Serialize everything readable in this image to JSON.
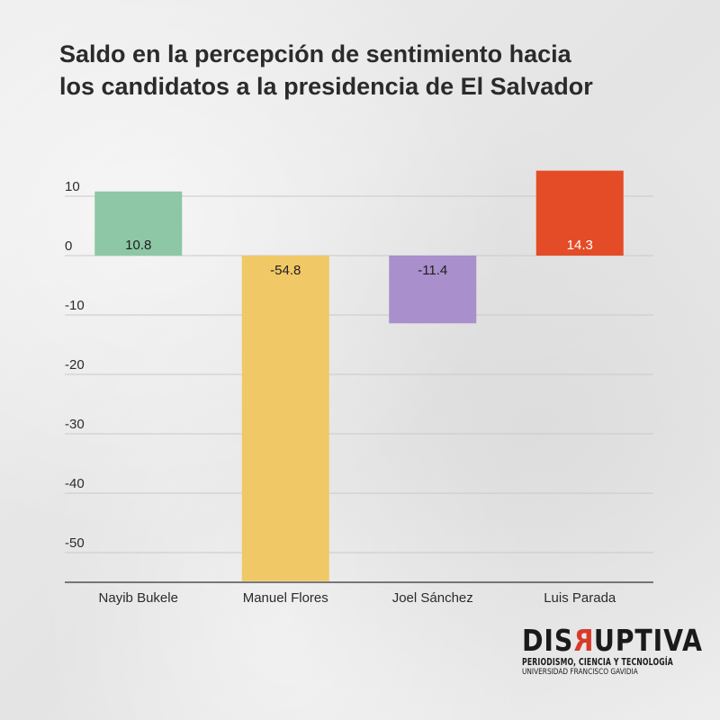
{
  "chart_data": {
    "type": "bar",
    "title_lines": [
      "Saldo en la percepción de sentimiento hacia",
      "los candidatos a la presidencia de El Salvador"
    ],
    "categories": [
      "Nayib Bukele",
      "Manuel Flores",
      "Joel Sánchez",
      "Luis Parada"
    ],
    "values": [
      10.8,
      -54.8,
      -11.4,
      14.3
    ],
    "value_labels": [
      "10.8",
      "-54.8",
      "-11.4",
      "14.3"
    ],
    "colors": [
      "#8dc7a5",
      "#f0c866",
      "#a98fcb",
      "#e34c27"
    ],
    "label_colors": [
      "#1e1e1e",
      "#1e1e1e",
      "#1e1e1e",
      "#ffffff"
    ],
    "yticks": [
      10,
      0,
      -10,
      -20,
      -30,
      -40,
      -50
    ],
    "ylim": [
      -55,
      14.3
    ],
    "xlabel": "",
    "ylabel": "",
    "grid": true
  },
  "logo": {
    "word_before": "DIS",
    "word_accent": "R",
    "word_after": "UPTIVA",
    "line1": "PERIODISMO, CIENCIA Y TECNOLOGÍA",
    "line2": "UNIVERSIDAD FRANCISCO GAVIDIA"
  }
}
